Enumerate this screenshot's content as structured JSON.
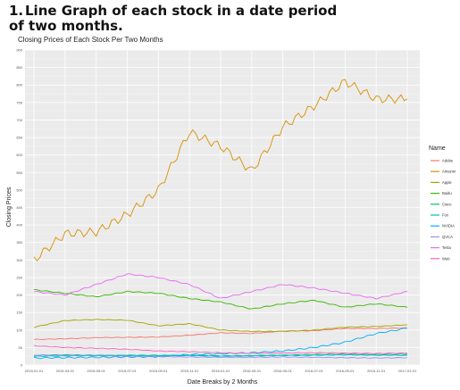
{
  "heading": {
    "number": "1.",
    "text": "Line Graph of each stock in a date period of two months."
  },
  "chart_data": {
    "type": "line",
    "title": "Closing Prices of Each Stock Per Two Months",
    "xlabel": "Date Breaks by 2 Months",
    "ylabel": "Closing Prices",
    "ylim": [
      0,
      900
    ],
    "y_ticks": [
      "0",
      "50",
      "100",
      "150",
      "200",
      "250",
      "300",
      "350",
      "400",
      "450",
      "500",
      "550",
      "600",
      "650",
      "700",
      "750",
      "800",
      "850",
      "900"
    ],
    "x_tick_labels": [
      "2015-01-01",
      "2015-03-01",
      "2015-05-01",
      "2015-07-01",
      "2015-09-01",
      "2015-11-01",
      "2016-01-01",
      "2016-03-01",
      "2016-05-01",
      "2016-07-01",
      "2016-09-01",
      "2016-11-01",
      "2017-01-01"
    ],
    "grid": true,
    "legend_title": "Name",
    "legend_position": "right",
    "x": [
      "2015-01-01",
      "2015-03-01",
      "2015-05-01",
      "2015-07-01",
      "2015-09-01",
      "2015-11-01",
      "2016-01-01",
      "2016-03-01",
      "2016-05-01",
      "2016-07-01",
      "2016-09-01",
      "2016-11-01",
      "2017-01-01"
    ],
    "series": [
      {
        "name": "Adobe",
        "color": "#f8766d",
        "values": [
          73,
          75,
          78,
          79,
          80,
          85,
          92,
          90,
          97,
          98,
          104,
          104,
          106
        ]
      },
      {
        "name": "Amazon",
        "color": "#d89000",
        "values": [
          300,
          375,
          380,
          430,
          500,
          665,
          625,
          555,
          680,
          740,
          810,
          760,
          760
        ]
      },
      {
        "name": "Apple",
        "color": "#a3a500",
        "values": [
          108,
          127,
          130,
          128,
          112,
          118,
          100,
          96,
          96,
          100,
          108,
          110,
          115
        ]
      },
      {
        "name": "Baidu",
        "color": "#39b600",
        "values": [
          215,
          205,
          195,
          210,
          205,
          190,
          180,
          160,
          175,
          185,
          165,
          175,
          165
        ]
      },
      {
        "name": "Cisco",
        "color": "#00bf7d",
        "values": [
          28,
          29,
          28,
          27,
          26,
          28,
          26,
          27,
          28,
          30,
          31,
          30,
          31
        ]
      },
      {
        "name": "Fox",
        "color": "#00bfc4",
        "values": [
          25,
          26,
          27,
          28,
          28,
          27,
          25,
          26,
          27,
          28,
          29,
          28,
          28
        ]
      },
      {
        "name": "NVIDIA",
        "color": "#00b0f6",
        "values": [
          20,
          21,
          22,
          23,
          24,
          30,
          32,
          35,
          40,
          50,
          65,
          90,
          105
        ]
      },
      {
        "name": "QVCA",
        "color": "#9590ff",
        "values": [
          28,
          27,
          26,
          25,
          24,
          23,
          22,
          22,
          23,
          22,
          21,
          20,
          21
        ]
      },
      {
        "name": "Tesla",
        "color": "#e76bf3",
        "values": [
          210,
          200,
          230,
          260,
          250,
          230,
          190,
          210,
          230,
          220,
          205,
          190,
          210
        ]
      },
      {
        "name": "Web",
        "color": "#ff62bc",
        "values": [
          55,
          50,
          48,
          45,
          40,
          38,
          35,
          33,
          34,
          35,
          34,
          33,
          34
        ]
      }
    ]
  }
}
